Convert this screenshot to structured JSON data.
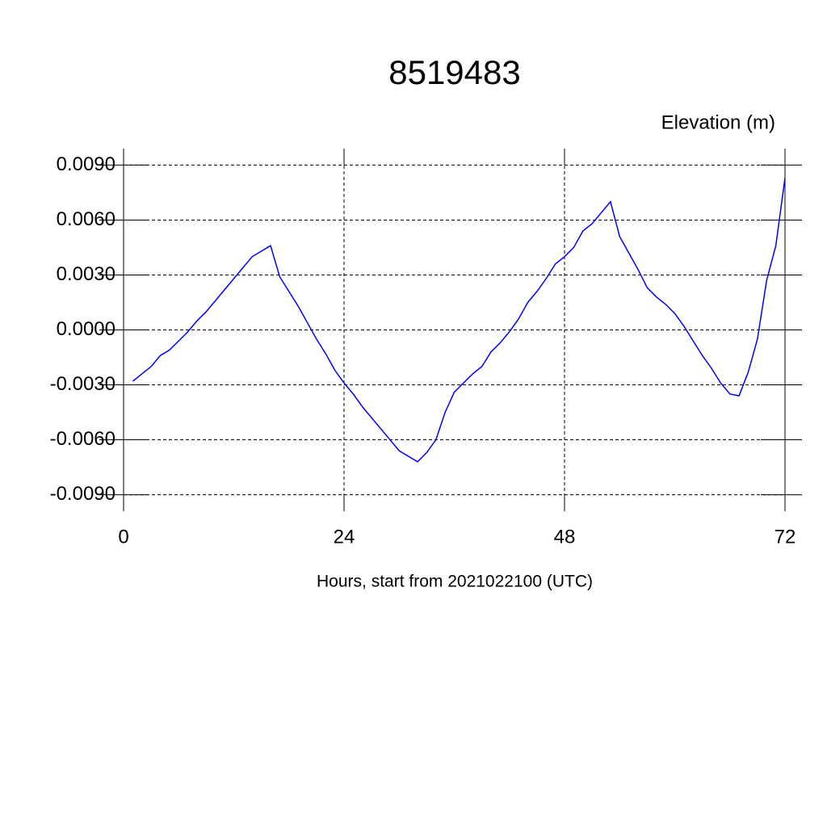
{
  "chart_data": {
    "type": "line",
    "title": "8519483",
    "subtitle": "Elevation (m)",
    "x_label": "Hours, start from 2021022100 (UTC)",
    "x": [
      1,
      2,
      3,
      4,
      5,
      6,
      7,
      8,
      9,
      10,
      11,
      12,
      13,
      14,
      15,
      16,
      17,
      18,
      19,
      20,
      21,
      22,
      23,
      24,
      25,
      26,
      27,
      28,
      29,
      30,
      31,
      32,
      33,
      34,
      35,
      36,
      37,
      38,
      39,
      40,
      41,
      42,
      43,
      44,
      45,
      46,
      47,
      48,
      49,
      50,
      51,
      52,
      53,
      54,
      55,
      56,
      57,
      58,
      59,
      60,
      61,
      62,
      63,
      64,
      65,
      66,
      67,
      68,
      69,
      70,
      71,
      72
    ],
    "series": [
      {
        "color": "#0000ff",
        "values": [
          -0.0028,
          -0.0024,
          -0.002,
          -0.0014,
          -0.0011,
          -0.0006,
          -0.0001,
          0.0005,
          0.001,
          0.0016,
          0.0022,
          0.0028,
          0.0034,
          0.004,
          0.0043,
          0.0046,
          0.0029,
          0.0021,
          0.0013,
          0.0004,
          -0.0005,
          -0.0013,
          -0.0022,
          -0.0029,
          -0.0035,
          -0.0042,
          -0.0048,
          -0.0054,
          -0.006,
          -0.0066,
          -0.0069,
          -0.0072,
          -0.0067,
          -0.006,
          -0.0045,
          -0.0034,
          -0.0029,
          -0.0024,
          -0.002,
          -0.0012,
          -0.0007,
          -0.0001,
          0.0006,
          0.0015,
          0.0021,
          0.0028,
          0.0036,
          0.004,
          0.0045,
          0.0054,
          0.0058,
          0.0064,
          0.007,
          0.0051,
          0.0042,
          0.0033,
          0.0023,
          0.0018,
          0.0014,
          0.0009,
          0.0002,
          -0.0006,
          -0.0014,
          -0.0021,
          -0.0029,
          -0.0035,
          -0.0036,
          -0.0023,
          -0.0005,
          0.0027,
          0.0046,
          0.0083
        ]
      }
    ],
    "xlim": [
      0,
      72
    ],
    "xticks": [
      0,
      24,
      48,
      72
    ],
    "ylim": [
      -0.0099,
      0.0099
    ],
    "yticks": [
      {
        "value": -0.009,
        "label": "-0.0090"
      },
      {
        "value": -0.006,
        "label": "-0.0060"
      },
      {
        "value": -0.003,
        "label": "-0.0030"
      },
      {
        "value": 0,
        "label": "0.0000"
      },
      {
        "value": 0.003,
        "label": "0.0030"
      },
      {
        "value": 0.006,
        "label": "0.0060"
      },
      {
        "value": 0.009,
        "label": "0.0090"
      }
    ],
    "grid": true
  }
}
